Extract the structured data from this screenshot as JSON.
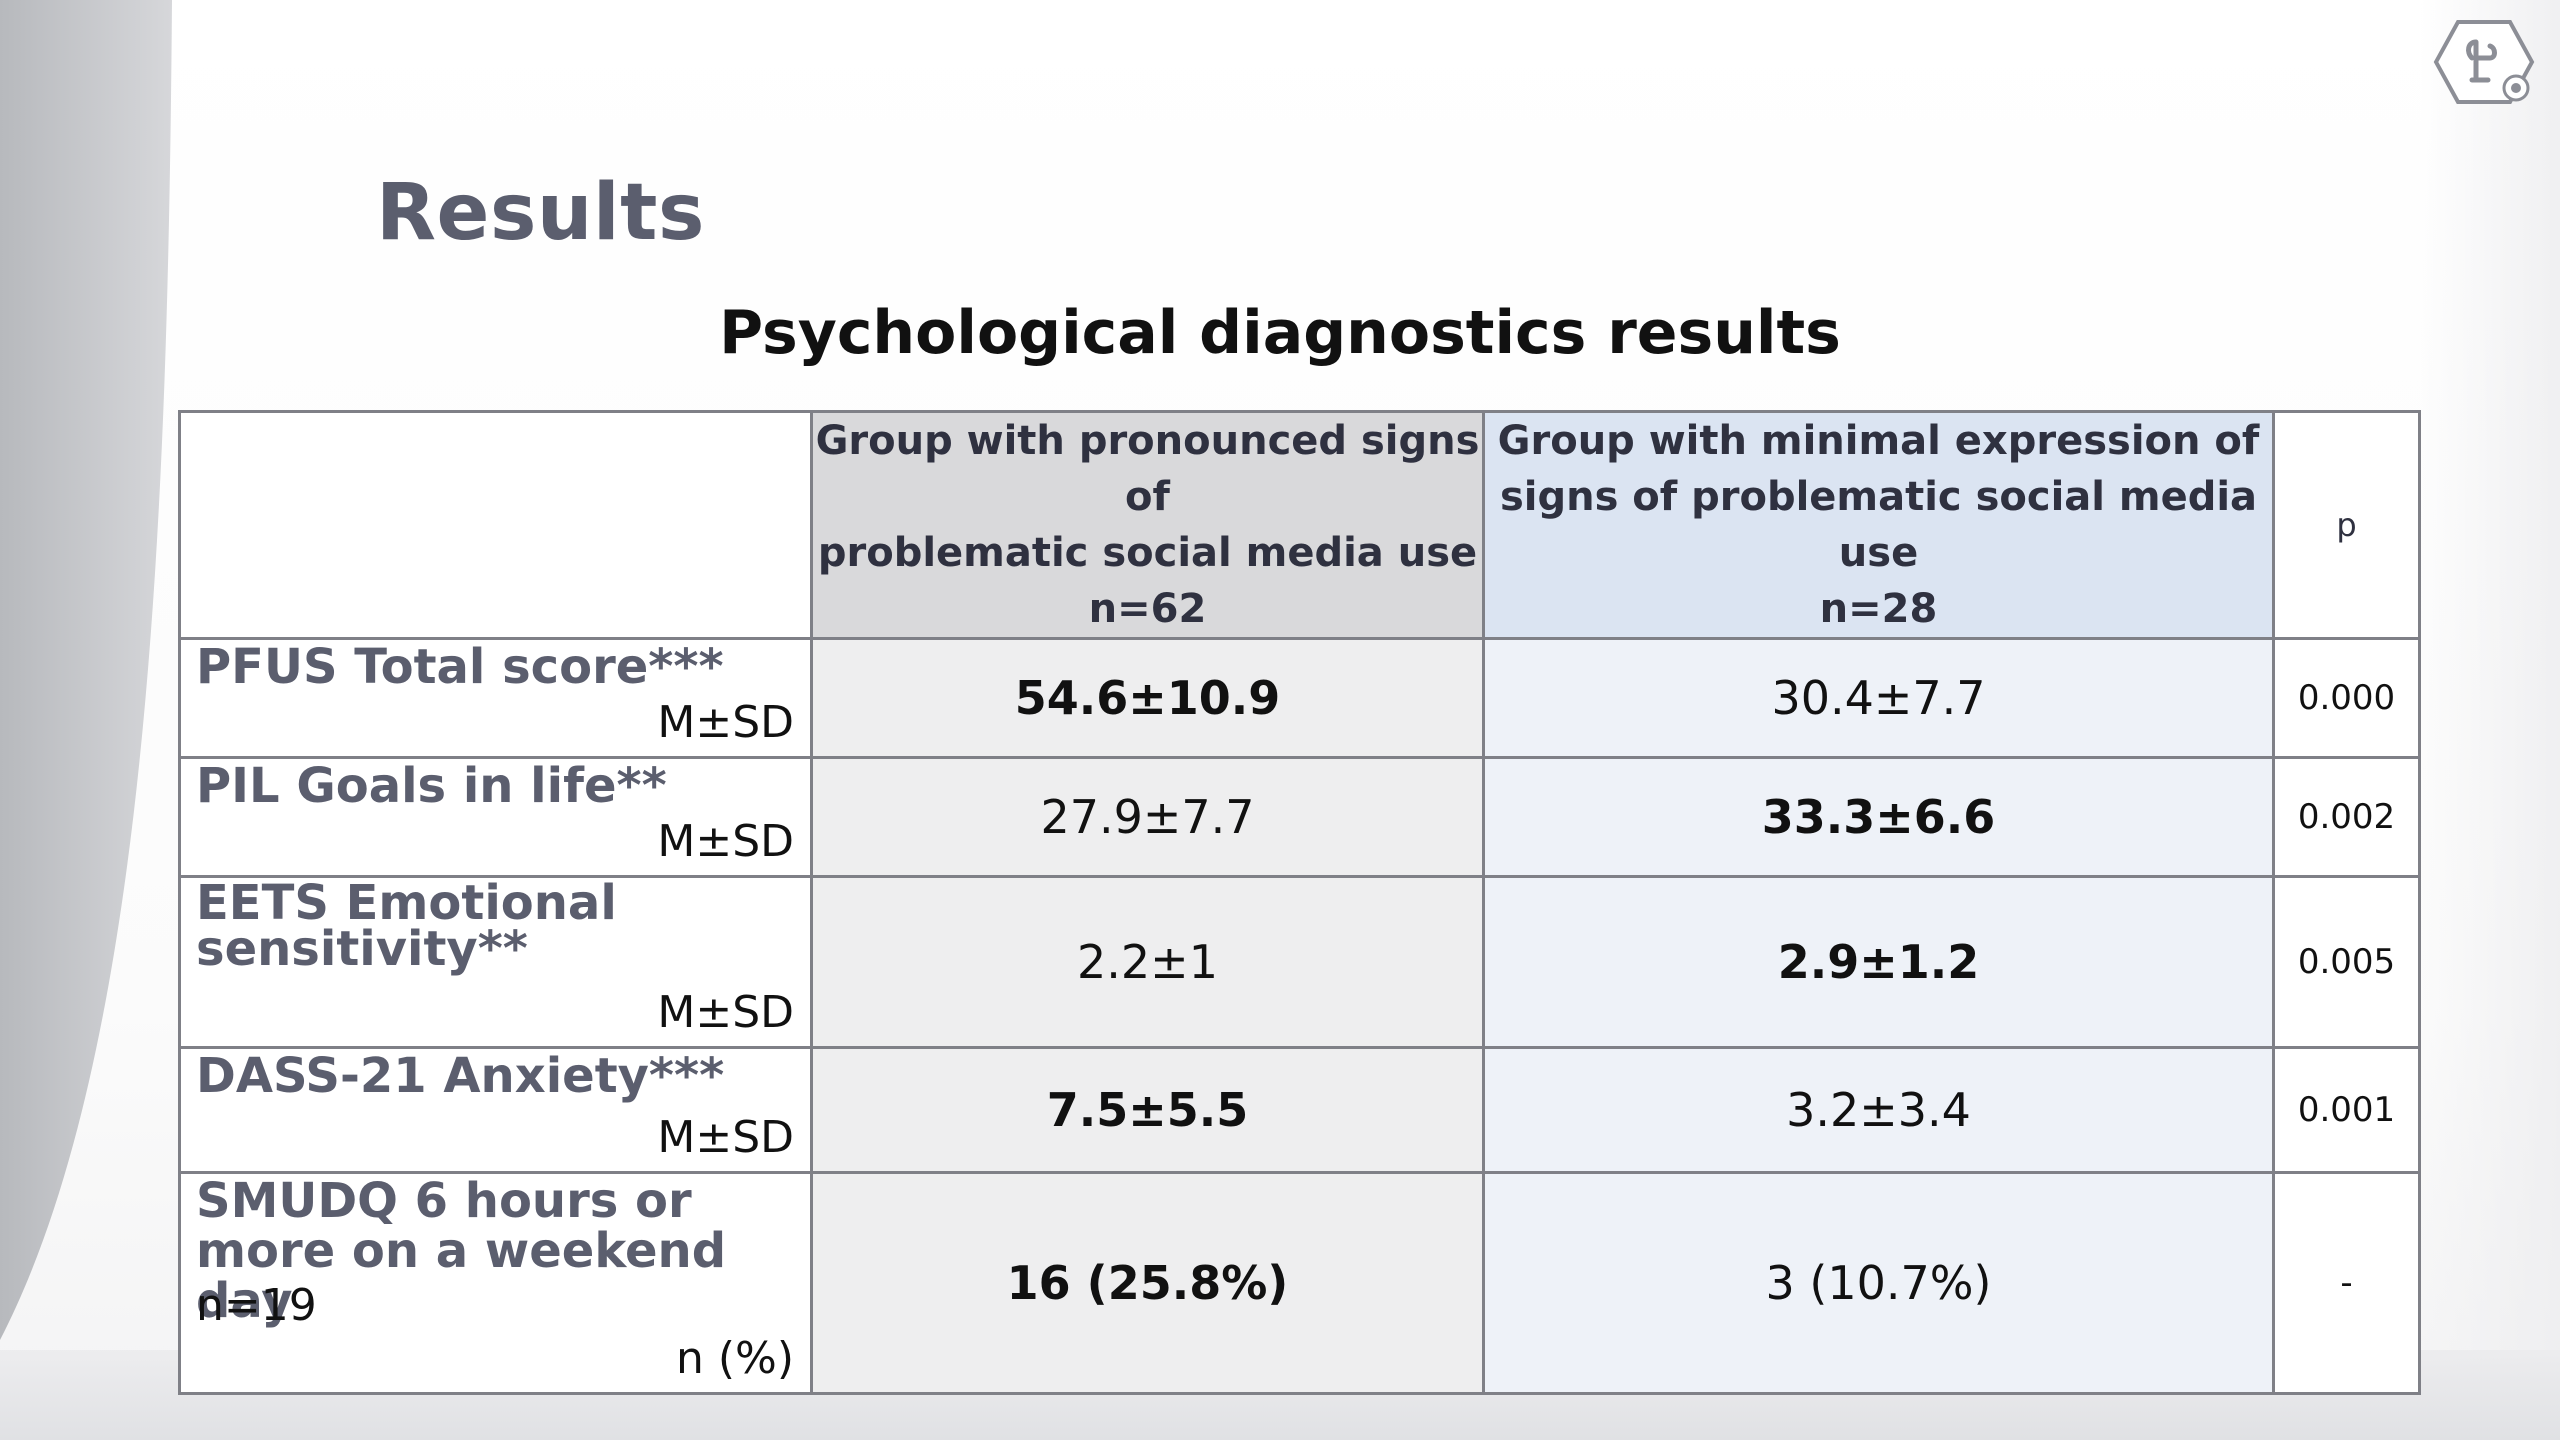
{
  "slide": {
    "heading": "Results",
    "table_title": "Psychological diagnostics results"
  },
  "table": {
    "headers": {
      "col0": "",
      "group1": {
        "line1": "Group with pronounced signs of",
        "line2": "problematic social media use",
        "line3": "n=62"
      },
      "group2": {
        "line1": "Group with minimal expression of",
        "line2": "signs of problematic social media use",
        "line3": "n=28"
      },
      "p": "p"
    },
    "rows": [
      {
        "label": "PFUS Total score***",
        "sub": "",
        "unit": "M±SD",
        "group1": "54.6±10.9",
        "group2": "30.4±7.7",
        "p": "0.000"
      },
      {
        "label": "PIL Goals in life**",
        "sub": "",
        "unit": "M±SD",
        "group1": "27.9±7.7",
        "group2": "33.3±6.6",
        "p": "0.002"
      },
      {
        "label": "EETS Emotional sensitivity**",
        "sub": "",
        "unit": "M±SD",
        "group1": "2.2±1",
        "group2": "2.9±1.2",
        "p": "0.005"
      },
      {
        "label": "DASS-21 Anxiety***",
        "sub": "",
        "unit": "M±SD",
        "group1": "7.5±5.5",
        "group2": "3.2±3.4",
        "p": "0.001"
      },
      {
        "label": "SMUDQ 6 hours or more on a weekend day",
        "sub": "n=19",
        "unit": "n (%)",
        "group1": "16 (25.8%)",
        "group2": "3 (10.7%)",
        "p": "-"
      }
    ]
  },
  "colors": {
    "heading": "#5b5e6e",
    "group1_header_bg": "#d9d9db",
    "group2_header_bg": "#dbe4f2",
    "group1_cell_bg": "#eeeeef",
    "group2_cell_bg": "#eef2f8",
    "border": "#7f8087"
  },
  "icons": {
    "logo": "hexagon-logo-icon"
  }
}
